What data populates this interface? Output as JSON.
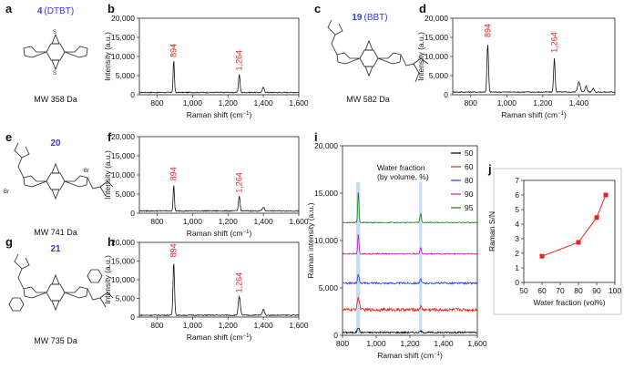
{
  "panel_letters": [
    "a",
    "b",
    "c",
    "d",
    "e",
    "f",
    "g",
    "h",
    "i",
    "j"
  ],
  "compounds": [
    {
      "number": "4",
      "abbr": "(DTBT)",
      "mw": "MW 358 Da"
    },
    {
      "number": "19",
      "abbr": "(BBT)",
      "mw": "MW 582 Da"
    },
    {
      "number": "20",
      "abbr": "",
      "mw": "MW 741 Da"
    },
    {
      "number": "21",
      "abbr": "",
      "mw": "MW 735 Da"
    }
  ],
  "atoms": {
    "s": "S",
    "n": "N",
    "br": "Br"
  },
  "colors": {
    "peak_label": "#e02020",
    "compound_number": "#3a3ad8",
    "j_series": "#e8211b",
    "band": "#9dbfe6"
  },
  "chart_data": [
    {
      "panel": "b",
      "type": "line",
      "xlabel": "Raman shift (cm",
      "xlabel_sup": "−1",
      "xlabel_end": ")",
      "ylabel": "Intensity (a.u.)",
      "xlim": [
        700,
        1600
      ],
      "ylim": [
        0,
        20000
      ],
      "xticks": [
        800,
        1000,
        1200,
        1400,
        1600
      ],
      "xtick_labels": [
        "800",
        "1,000",
        "1,200",
        "1,400",
        "1,600"
      ],
      "yticks": [
        0,
        5000,
        10000,
        15000,
        20000
      ],
      "ytick_labels": [
        "0",
        "5,000",
        "10,000",
        "15,000",
        "20,000"
      ],
      "baseline": 600,
      "peaks": [
        [
          894,
          8500,
          5
        ],
        [
          1264,
          4800,
          6
        ],
        [
          1400,
          1300,
          8
        ]
      ],
      "peak_labels": [
        {
          "x": 894,
          "text": "894",
          "y": 9800
        },
        {
          "x": 1264,
          "text": "1,264",
          "y": 6300
        }
      ]
    },
    {
      "panel": "d",
      "type": "line",
      "xlabel": "Raman shift (cm",
      "xlabel_sup": "−1",
      "xlabel_end": ")",
      "ylabel": "Intensity (a.u.)",
      "xlim": [
        700,
        1600
      ],
      "ylim": [
        0,
        20000
      ],
      "xticks": [
        800,
        1000,
        1200,
        1400
      ],
      "xtick_labels": [
        "800",
        "1,000",
        "1,200",
        "1,400"
      ],
      "yticks": [
        0,
        5000,
        10000,
        15000,
        20000
      ],
      "ytick_labels": [
        "0",
        "5,000",
        "10,000",
        "15,000",
        "20,000"
      ],
      "baseline": 700,
      "peaks": [
        [
          894,
          12600,
          6
        ],
        [
          1264,
          8800,
          6
        ],
        [
          1400,
          2800,
          10
        ],
        [
          1440,
          1600,
          8
        ],
        [
          1480,
          1000,
          8
        ]
      ],
      "peak_labels": [
        {
          "x": 894,
          "text": "894",
          "y": 15000
        },
        {
          "x": 1264,
          "text": "1,264",
          "y": 11000
        }
      ]
    },
    {
      "panel": "f",
      "type": "line",
      "xlabel": "Raman shift (cm",
      "xlabel_sup": "−1",
      "xlabel_end": ")",
      "ylabel": "Intensity (a.u.)",
      "xlim": [
        700,
        1600
      ],
      "ylim": [
        0,
        20000
      ],
      "xticks": [
        800,
        1000,
        1200,
        1400,
        1600
      ],
      "xtick_labels": [
        "800",
        "1,000",
        "1,200",
        "1,400",
        "1,600"
      ],
      "yticks": [
        0,
        5000,
        10000,
        15000,
        20000
      ],
      "ytick_labels": [
        "0",
        "5,000",
        "10,000",
        "15,000",
        "20,000"
      ],
      "baseline": 600,
      "peaks": [
        [
          894,
          6800,
          5
        ],
        [
          1264,
          4000,
          6
        ],
        [
          1400,
          1000,
          8
        ]
      ],
      "peak_labels": [
        {
          "x": 894,
          "text": "894",
          "y": 8500
        },
        {
          "x": 1264,
          "text": "1,264",
          "y": 5300
        }
      ]
    },
    {
      "panel": "h",
      "type": "line",
      "xlabel": "Raman shift (cm",
      "xlabel_sup": "−1",
      "xlabel_end": ")",
      "ylabel": "Intensity (a.u.)",
      "xlim": [
        700,
        1600
      ],
      "ylim": [
        0,
        20000
      ],
      "xticks": [
        800,
        1000,
        1200,
        1400,
        1600
      ],
      "xtick_labels": [
        "800",
        "1,000",
        "1,200",
        "1,400",
        "1,600"
      ],
      "yticks": [
        0,
        5000,
        10000,
        15000,
        20000
      ],
      "ytick_labels": [
        "0",
        "5,000",
        "10,000",
        "15,000",
        "20,000"
      ],
      "baseline": 500,
      "peaks": [
        [
          894,
          14300,
          6
        ],
        [
          1264,
          5000,
          8
        ],
        [
          1400,
          1600,
          8
        ]
      ],
      "peak_labels": [
        {
          "x": 894,
          "text": "894",
          "y": 16000
        },
        {
          "x": 1264,
          "text": "1,264",
          "y": 6500
        }
      ]
    },
    {
      "panel": "i",
      "type": "line",
      "xlabel": "Raman shift (cm",
      "xlabel_sup": "−1",
      "xlabel_end": ")",
      "ylabel": "Raman intensity (a.u.)",
      "xlim": [
        800,
        1600
      ],
      "ylim": [
        0,
        20000
      ],
      "xticks": [
        800,
        1000,
        1200,
        1400,
        1600
      ],
      "xtick_labels": [
        "800",
        "1,000",
        "1,200",
        "1,400",
        "1,600"
      ],
      "yticks": [
        0,
        5000,
        10000,
        15000,
        20000
      ],
      "ytick_labels": [
        "0",
        "5,000",
        "10,000",
        "15,000",
        "20,000"
      ],
      "bands": [
        [
          880,
          905
        ],
        [
          1255,
          1272
        ]
      ],
      "legend_title": [
        "Water fraction",
        "(by volume, %)"
      ],
      "series": [
        {
          "name": "50",
          "color": "#000000",
          "offset": 300,
          "peaks": [
            [
              894,
              500,
              8
            ],
            [
              1264,
              150,
              8
            ]
          ],
          "noise": 160
        },
        {
          "name": "60",
          "color": "#e8211b",
          "offset": 2700,
          "peaks": [
            [
              894,
              1200,
              10
            ],
            [
              1264,
              300,
              8
            ]
          ],
          "noise": 320
        },
        {
          "name": "80",
          "color": "#1f3fe0",
          "offset": 5500,
          "peaks": [
            [
              894,
              900,
              7
            ],
            [
              1264,
              400,
              6
            ]
          ],
          "noise": 200
        },
        {
          "name": "90",
          "color": "#b21fb2",
          "offset": 8600,
          "peaks": [
            [
              894,
              2100,
              5
            ],
            [
              1264,
              700,
              6
            ]
          ],
          "noise": 120
        },
        {
          "name": "95",
          "color": "#1e7d1e",
          "offset": 11900,
          "peaks": [
            [
              894,
              3300,
              5
            ],
            [
              1264,
              1000,
              6
            ]
          ],
          "noise": 110
        }
      ]
    },
    {
      "panel": "j",
      "type": "line",
      "xlabel": "Water fraction (vol%)",
      "ylabel": "Raman S/N",
      "xlim": [
        50,
        100
      ],
      "ylim": [
        0,
        7
      ],
      "xticks": [
        50,
        60,
        70,
        80,
        90,
        100
      ],
      "xtick_labels": [
        "50",
        "60",
        "70",
        "80",
        "90",
        "100"
      ],
      "yticks": [
        0,
        1,
        2,
        3,
        4,
        5,
        6,
        7
      ],
      "ytick_labels": [
        "0",
        "1",
        "2",
        "3",
        "4",
        "5",
        "6",
        "7"
      ],
      "x": [
        60,
        80,
        90,
        95
      ],
      "y": [
        1.8,
        2.75,
        4.45,
        6.0
      ],
      "color": "#e8211b"
    }
  ]
}
